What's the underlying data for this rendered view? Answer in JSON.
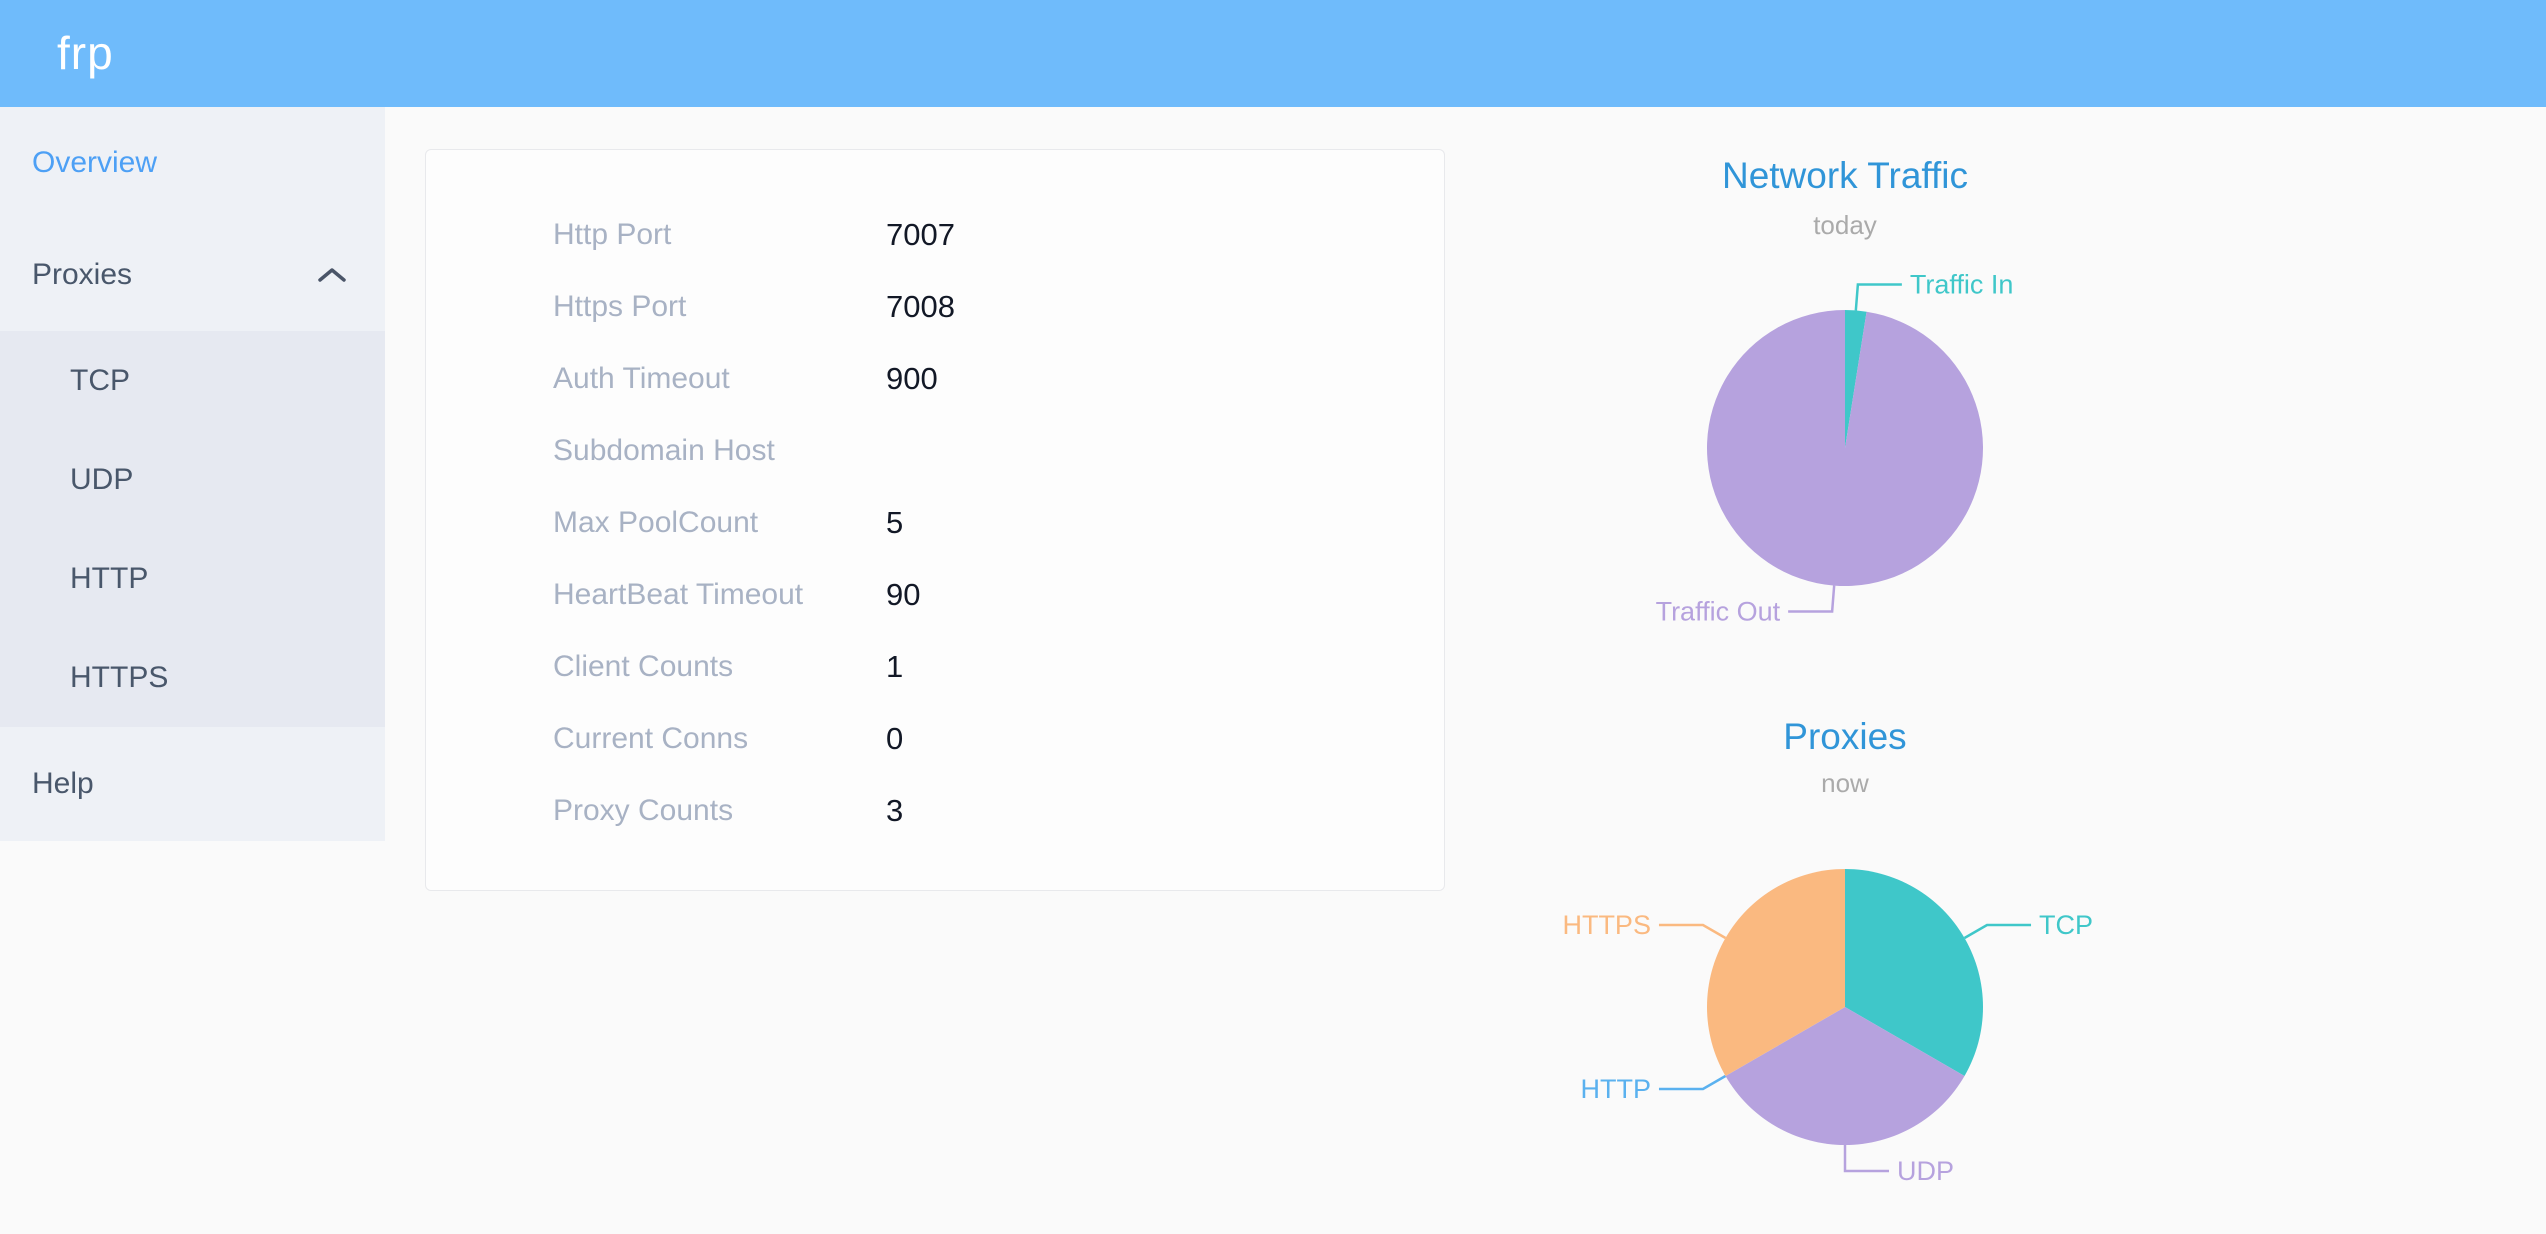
{
  "header": {
    "logo": "frp"
  },
  "sidebar": {
    "items": [
      {
        "label": "Overview",
        "active": true
      },
      {
        "label": "Proxies",
        "expanded": true
      }
    ],
    "submenu": [
      {
        "label": "TCP"
      },
      {
        "label": "UDP"
      },
      {
        "label": "HTTP"
      },
      {
        "label": "HTTPS"
      }
    ],
    "help_label": "Help"
  },
  "server_info": {
    "rows": [
      {
        "label": "Http Port",
        "value": "7007"
      },
      {
        "label": "Https Port",
        "value": "7008"
      },
      {
        "label": "Auth Timeout",
        "value": "900"
      },
      {
        "label": "Subdomain Host",
        "value": ""
      },
      {
        "label": "Max PoolCount",
        "value": "5"
      },
      {
        "label": "HeartBeat Timeout",
        "value": "90"
      },
      {
        "label": "Client Counts",
        "value": "1"
      },
      {
        "label": "Current Conns",
        "value": "0"
      },
      {
        "label": "Proxy Counts",
        "value": "3"
      }
    ]
  },
  "chart_data": [
    {
      "type": "pie",
      "title": "Network Traffic",
      "subtitle": "today",
      "legend": "none",
      "label_style": "outside-leader-lines",
      "values_note": "shares estimated from arc angles; absolute byte values not labeled on screen",
      "series": [
        {
          "name": "Traffic In",
          "value": 2.5,
          "color": "#3fc7c9"
        },
        {
          "name": "Traffic Out",
          "value": 97.5,
          "color": "#b6a2de"
        }
      ]
    },
    {
      "type": "pie",
      "title": "Proxies",
      "subtitle": "now",
      "legend": "none",
      "label_style": "outside-leader-lines",
      "series": [
        {
          "name": "TCP",
          "value": 1,
          "color": "#3fc7c9"
        },
        {
          "name": "UDP",
          "value": 1,
          "color": "#b6a2de"
        },
        {
          "name": "HTTP",
          "value": 0,
          "color": "#5ab1ef"
        },
        {
          "name": "HTTPS",
          "value": 1,
          "color": "#fab980"
        }
      ]
    }
  ],
  "colors": {
    "header_bg": "#6fbbfb",
    "sidebar_bg": "#eef1f6",
    "submenu_bg": "#e6e9f1",
    "sidebar_text": "#49576b",
    "active_item": "#4da0f5",
    "page_bg": "#fafafa",
    "panel_bg": "#fdfdfd",
    "panel_border": "#e8e9ec",
    "config_label": "#a8b2c4",
    "config_value": "#121826",
    "chart_title": "#3095d8",
    "chart_subtitle": "#aaaaaa"
  }
}
